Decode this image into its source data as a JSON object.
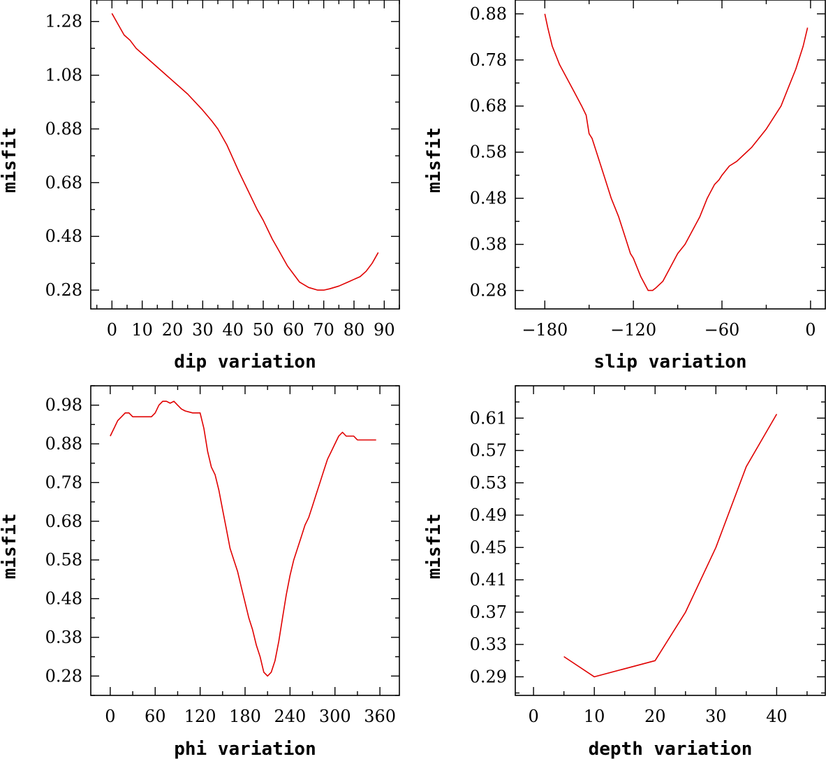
{
  "chart_data": [
    {
      "type": "line",
      "xlabel": "dip variation",
      "ylabel": "misfit",
      "xlim": [
        -7,
        95
      ],
      "ylim": [
        0.21,
        1.36
      ],
      "xticks": [
        "0",
        "10",
        "20",
        "30",
        "40",
        "50",
        "60",
        "70",
        "80",
        "90"
      ],
      "xtick_values": [
        0,
        10,
        20,
        30,
        40,
        50,
        60,
        70,
        80,
        90
      ],
      "yticks": [
        "0.28",
        "0.48",
        "0.68",
        "0.88",
        "1.08",
        "1.28"
      ],
      "ytick_values": [
        0.28,
        0.48,
        0.68,
        0.88,
        1.08,
        1.28
      ],
      "series": [
        {
          "name": "misfit",
          "color": "#e00000",
          "x": [
            0,
            2,
            4,
            6,
            8,
            10,
            12,
            15,
            18,
            20,
            25,
            30,
            33,
            35,
            38,
            40,
            42,
            45,
            48,
            50,
            53,
            55,
            58,
            60,
            62,
            65,
            68,
            70,
            72,
            75,
            78,
            80,
            82,
            84,
            86,
            88
          ],
          "y": [
            1.31,
            1.27,
            1.23,
            1.21,
            1.18,
            1.16,
            1.14,
            1.11,
            1.08,
            1.06,
            1.01,
            0.95,
            0.91,
            0.88,
            0.82,
            0.77,
            0.72,
            0.65,
            0.58,
            0.54,
            0.47,
            0.43,
            0.37,
            0.34,
            0.31,
            0.29,
            0.28,
            0.28,
            0.285,
            0.295,
            0.31,
            0.32,
            0.33,
            0.35,
            0.38,
            0.42
          ]
        }
      ]
    },
    {
      "type": "line",
      "xlabel": "slip variation",
      "ylabel": "misfit",
      "xlim": [
        -200,
        10
      ],
      "ylim": [
        0.24,
        0.91
      ],
      "xticks": [
        "-180",
        "-120",
        "-60",
        "0"
      ],
      "xtick_values": [
        -180,
        -120,
        -60,
        0
      ],
      "yticks": [
        "0.28",
        "0.38",
        "0.48",
        "0.58",
        "0.68",
        "0.78",
        "0.88"
      ],
      "ytick_values": [
        0.28,
        0.38,
        0.48,
        0.58,
        0.68,
        0.78,
        0.88
      ],
      "series": [
        {
          "name": "misfit",
          "color": "#e00000",
          "x": [
            -180,
            -178,
            -175,
            -170,
            -165,
            -160,
            -155,
            -152,
            -150,
            -148,
            -145,
            -140,
            -135,
            -130,
            -125,
            -122,
            -120,
            -115,
            -110,
            -107,
            -105,
            -100,
            -95,
            -90,
            -85,
            -80,
            -75,
            -70,
            -65,
            -62,
            -60,
            -55,
            -50,
            -45,
            -40,
            -35,
            -30,
            -25,
            -20,
            -15,
            -10,
            -5,
            -2
          ],
          "y": [
            0.88,
            0.85,
            0.81,
            0.77,
            0.74,
            0.71,
            0.68,
            0.66,
            0.62,
            0.61,
            0.58,
            0.53,
            0.48,
            0.44,
            0.39,
            0.36,
            0.35,
            0.31,
            0.28,
            0.28,
            0.285,
            0.3,
            0.33,
            0.36,
            0.38,
            0.41,
            0.44,
            0.48,
            0.51,
            0.52,
            0.53,
            0.55,
            0.56,
            0.575,
            0.59,
            0.61,
            0.63,
            0.655,
            0.68,
            0.72,
            0.76,
            0.81,
            0.85
          ]
        }
      ]
    },
    {
      "type": "line",
      "xlabel": "phi variation",
      "ylabel": "misfit",
      "xlim": [
        -26,
        386
      ],
      "ylim": [
        0.23,
        1.03
      ],
      "xticks": [
        "0",
        "60",
        "120",
        "180",
        "240",
        "300",
        "360"
      ],
      "xtick_values": [
        0,
        60,
        120,
        180,
        240,
        300,
        360
      ],
      "yticks": [
        "0.28",
        "0.38",
        "0.48",
        "0.58",
        "0.68",
        "0.78",
        "0.88",
        "0.98"
      ],
      "ytick_values": [
        0.28,
        0.38,
        0.48,
        0.58,
        0.68,
        0.78,
        0.88,
        0.98
      ],
      "series": [
        {
          "name": "misfit",
          "color": "#e00000",
          "x": [
            0,
            5,
            10,
            15,
            20,
            25,
            30,
            35,
            40,
            45,
            50,
            55,
            60,
            65,
            70,
            75,
            80,
            85,
            90,
            95,
            100,
            110,
            120,
            125,
            130,
            135,
            140,
            145,
            150,
            155,
            160,
            165,
            170,
            175,
            180,
            185,
            190,
            195,
            200,
            205,
            210,
            215,
            220,
            225,
            230,
            235,
            240,
            245,
            250,
            255,
            260,
            265,
            270,
            275,
            280,
            285,
            290,
            295,
            300,
            305,
            310,
            315,
            320,
            325,
            330,
            335,
            340,
            345,
            350,
            355
          ],
          "y": [
            0.9,
            0.92,
            0.94,
            0.95,
            0.96,
            0.96,
            0.95,
            0.95,
            0.95,
            0.95,
            0.95,
            0.95,
            0.96,
            0.98,
            0.99,
            0.99,
            0.985,
            0.99,
            0.98,
            0.97,
            0.965,
            0.96,
            0.96,
            0.92,
            0.86,
            0.82,
            0.8,
            0.76,
            0.71,
            0.66,
            0.61,
            0.58,
            0.55,
            0.51,
            0.47,
            0.43,
            0.4,
            0.36,
            0.33,
            0.29,
            0.28,
            0.29,
            0.32,
            0.37,
            0.43,
            0.49,
            0.54,
            0.58,
            0.61,
            0.64,
            0.67,
            0.69,
            0.72,
            0.75,
            0.78,
            0.81,
            0.84,
            0.86,
            0.88,
            0.9,
            0.91,
            0.9,
            0.9,
            0.9,
            0.89,
            0.89,
            0.89,
            0.89,
            0.89,
            0.89
          ]
        }
      ]
    },
    {
      "type": "line",
      "xlabel": "depth variation",
      "ylabel": "misfit",
      "xlim": [
        -3,
        48
      ],
      "ylim": [
        0.267,
        0.65
      ],
      "xticks": [
        "0",
        "10",
        "20",
        "30",
        "40"
      ],
      "xtick_values": [
        0,
        10,
        20,
        30,
        40
      ],
      "yticks": [
        "0.29",
        "0.33",
        "0.37",
        "0.41",
        "0.45",
        "0.49",
        "0.53",
        "0.57",
        "0.61"
      ],
      "ytick_values": [
        0.29,
        0.33,
        0.37,
        0.41,
        0.45,
        0.49,
        0.53,
        0.57,
        0.61
      ],
      "series": [
        {
          "name": "misfit",
          "color": "#e00000",
          "x": [
            5,
            10,
            20,
            25,
            30,
            35,
            40
          ],
          "y": [
            0.315,
            0.29,
            0.31,
            0.37,
            0.45,
            0.55,
            0.615
          ]
        }
      ]
    }
  ]
}
